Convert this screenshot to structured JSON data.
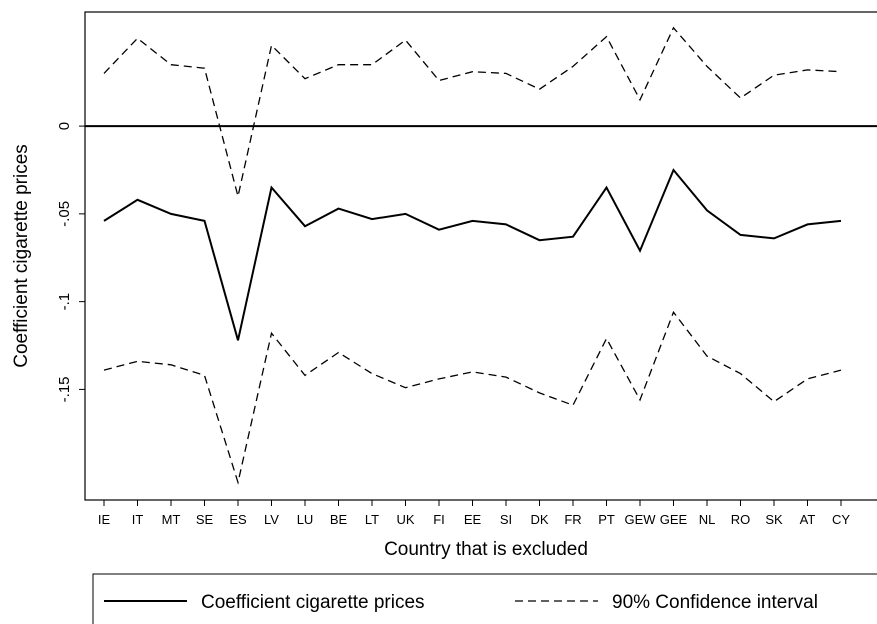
{
  "chart_data": {
    "type": "line",
    "xlabel": "Country that is excluded",
    "ylabel": "Coefficient cigarette prices",
    "categories": [
      "IE",
      "IT",
      "MT",
      "SE",
      "ES",
      "LV",
      "LU",
      "BE",
      "LT",
      "UK",
      "FI",
      "EE",
      "SI",
      "DK",
      "FR",
      "PT",
      "GEW",
      "GEE",
      "NL",
      "RO",
      "SK",
      "AT",
      "CY"
    ],
    "ylim": [
      -0.213,
      0.065
    ],
    "yticks": [
      0,
      -0.05,
      -0.1,
      -0.15
    ],
    "ytick_labels": [
      "0",
      "-.05",
      "-.1",
      "-.15"
    ],
    "reference_line": 0,
    "grid": false,
    "legend_position": "bottom",
    "series": [
      {
        "name": "Coefficient cigarette prices",
        "style": "solid",
        "values": [
          -0.054,
          -0.042,
          -0.05,
          -0.054,
          -0.122,
          -0.035,
          -0.057,
          -0.047,
          -0.053,
          -0.05,
          -0.059,
          -0.054,
          -0.056,
          -0.065,
          -0.063,
          -0.035,
          -0.071,
          -0.025,
          -0.048,
          -0.062,
          -0.064,
          -0.056,
          -0.054
        ]
      },
      {
        "name": "90% Confidence interval",
        "style": "dashed",
        "values": [
          0.03,
          0.05,
          0.035,
          0.033,
          -0.04,
          0.046,
          0.027,
          0.035,
          0.035,
          0.049,
          0.026,
          0.031,
          0.03,
          0.021,
          0.034,
          0.051,
          0.015,
          0.056,
          0.034,
          0.016,
          0.029,
          0.032,
          0.031
        ]
      },
      {
        "name": "90% Confidence interval",
        "style": "dashed",
        "values": [
          -0.139,
          -0.134,
          -0.136,
          -0.142,
          -0.203,
          -0.118,
          -0.142,
          -0.129,
          -0.141,
          -0.149,
          -0.144,
          -0.14,
          -0.143,
          -0.152,
          -0.159,
          -0.121,
          -0.156,
          -0.106,
          -0.131,
          -0.141,
          -0.157,
          -0.144,
          -0.139
        ]
      }
    ],
    "legend": [
      {
        "label": "Coefficient cigarette prices",
        "style": "solid"
      },
      {
        "label": "90% Confidence interval",
        "style": "dashed"
      }
    ]
  }
}
